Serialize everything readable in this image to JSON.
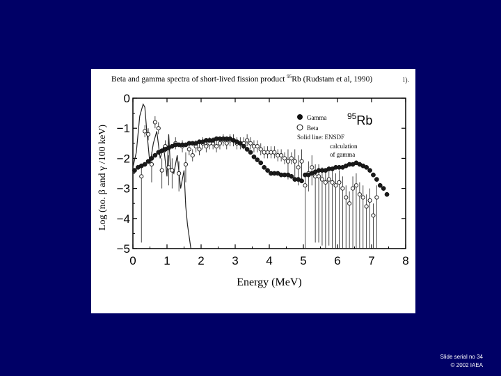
{
  "slide": {
    "footer_serial": "Slide serial no 34",
    "footer_copyright": "© 2002 IAEA",
    "background_color": "#000066"
  },
  "figure": {
    "title_prefix": "Beta and gamma spectra of short-lived fission product ",
    "title_isotope_mass": "95",
    "title_suffix": "Rb (Rudstam et al, 1990)",
    "cut_off_text": "l)."
  },
  "chart_data": {
    "type": "scatter",
    "xlabel": "Energy (MeV)",
    "ylabel": "Log (no. β and γ /100 keV)",
    "xlim": [
      0,
      8
    ],
    "ylim": [
      -5,
      0
    ],
    "x_ticks": [
      "0",
      "1",
      "2",
      "3",
      "4",
      "5",
      "6",
      "7",
      "8"
    ],
    "y_ticks": [
      "0",
      "−1",
      "−2",
      "−3",
      "−4",
      "−5"
    ],
    "isotope_label": "95Rb",
    "legend": {
      "gamma": "Gamma",
      "beta": "Beta",
      "line_label": [
        "Solid line: ENSDF",
        "calculation",
        "of gamma"
      ]
    },
    "series": [
      {
        "name": "Gamma",
        "marker": "filled-circle",
        "x": [
          0.05,
          0.15,
          0.25,
          0.35,
          0.45,
          0.55,
          0.65,
          0.75,
          0.85,
          0.95,
          1.05,
          1.15,
          1.25,
          1.35,
          1.45,
          1.55,
          1.65,
          1.75,
          1.85,
          1.95,
          2.05,
          2.15,
          2.25,
          2.35,
          2.45,
          2.55,
          2.65,
          2.75,
          2.85,
          2.95,
          3.05,
          3.15,
          3.25,
          3.35,
          3.45,
          3.55,
          3.65,
          3.75,
          3.85,
          3.95,
          4.05,
          4.15,
          4.25,
          4.35,
          4.45,
          4.55,
          4.65,
          4.75,
          4.85,
          4.95,
          5.05,
          5.15,
          5.25,
          5.35,
          5.45,
          5.55,
          5.65,
          5.75,
          5.85,
          5.95,
          6.05,
          6.15,
          6.25,
          6.35,
          6.45,
          6.55,
          6.65,
          6.75,
          6.85,
          6.95,
          7.05,
          7.15,
          7.25,
          7.35,
          7.45
        ],
        "y": [
          -2.4,
          -2.3,
          -2.25,
          -2.2,
          -2.1,
          -2.0,
          -1.9,
          -1.8,
          -1.75,
          -1.7,
          -1.65,
          -1.6,
          -1.55,
          -1.55,
          -1.55,
          -1.55,
          -1.5,
          -1.5,
          -1.5,
          -1.45,
          -1.45,
          -1.4,
          -1.4,
          -1.4,
          -1.35,
          -1.35,
          -1.35,
          -1.35,
          -1.35,
          -1.4,
          -1.45,
          -1.5,
          -1.6,
          -1.7,
          -1.8,
          -1.95,
          -2.05,
          -2.15,
          -2.3,
          -2.4,
          -2.5,
          -2.5,
          -2.5,
          -2.55,
          -2.55,
          -2.55,
          -2.6,
          -2.7,
          -2.7,
          -2.75,
          -2.55,
          -2.55,
          -2.5,
          -2.45,
          -2.4,
          -2.4,
          -2.4,
          -2.35,
          -2.35,
          -2.3,
          -2.3,
          -2.3,
          -2.25,
          -2.2,
          -2.2,
          -2.15,
          -2.2,
          -2.25,
          -2.3,
          -2.4,
          -2.55,
          -2.7,
          -2.9,
          -3.0,
          -3.2
        ]
      },
      {
        "name": "Beta",
        "marker": "open-circle",
        "x": [
          0.25,
          0.35,
          0.45,
          0.55,
          0.65,
          0.75,
          0.85,
          0.95,
          1.05,
          1.15,
          1.25,
          1.35,
          1.45,
          1.55,
          1.65,
          1.75,
          1.85,
          1.95,
          2.05,
          2.15,
          2.25,
          2.35,
          2.45,
          2.55,
          2.65,
          2.75,
          2.85,
          2.95,
          3.05,
          3.15,
          3.25,
          3.35,
          3.45,
          3.55,
          3.65,
          3.75,
          3.85,
          3.95,
          4.05,
          4.15,
          4.25,
          4.35,
          4.45,
          4.55,
          4.65,
          4.75,
          4.85,
          4.95,
          5.05,
          5.15,
          5.25,
          5.35,
          5.45,
          5.55,
          5.65,
          5.75,
          5.85,
          5.95,
          6.05,
          6.15,
          6.25,
          6.35,
          6.45,
          6.55,
          6.65,
          6.75,
          6.85,
          6.95,
          7.05,
          7.15
        ],
        "y": [
          -2.6,
          -1.1,
          -1.2,
          -2.2,
          -0.8,
          -1.0,
          -2.4,
          -1.6,
          -2.3,
          -2.4,
          -1.5,
          -2.5,
          -1.6,
          -2.2,
          -1.7,
          -1.9,
          -1.6,
          -1.7,
          -1.5,
          -1.6,
          -1.5,
          -1.5,
          -1.6,
          -1.5,
          -1.4,
          -1.5,
          -1.4,
          -1.4,
          -1.5,
          -1.5,
          -1.5,
          -1.4,
          -1.5,
          -1.6,
          -1.6,
          -1.7,
          -1.8,
          -1.8,
          -1.8,
          -1.8,
          -1.9,
          -1.9,
          -2.0,
          -2.1,
          -2.0,
          -2.1,
          -2.3,
          -2.1,
          -2.9,
          -2.5,
          -2.3,
          -2.6,
          -2.6,
          -2.7,
          -2.8,
          -2.7,
          -2.8,
          -2.9,
          -2.8,
          -3.0,
          -3.3,
          -3.5,
          -3.0,
          -2.9,
          -3.2,
          -3.3,
          -3.6,
          -3.4,
          -3.9,
          -3.3
        ]
      },
      {
        "name": "ENSDF calculation of gamma",
        "marker": "line",
        "x": [
          0.0,
          0.1,
          0.2,
          0.3,
          0.35,
          0.4,
          0.5,
          0.6,
          0.7,
          0.8,
          0.9,
          1.0,
          1.05,
          1.1,
          1.2,
          1.3,
          1.4,
          1.5,
          1.55,
          1.6,
          1.7
        ],
        "y": [
          -2.3,
          -1.8,
          -0.6,
          -0.2,
          -0.3,
          -1.0,
          -2.2,
          -1.5,
          -1.1,
          -2.0,
          -1.6,
          -2.6,
          -1.2,
          -2.3,
          -2.5,
          -1.9,
          -3.0,
          -2.4,
          -3.6,
          -4.2,
          -5.0
        ]
      }
    ]
  }
}
